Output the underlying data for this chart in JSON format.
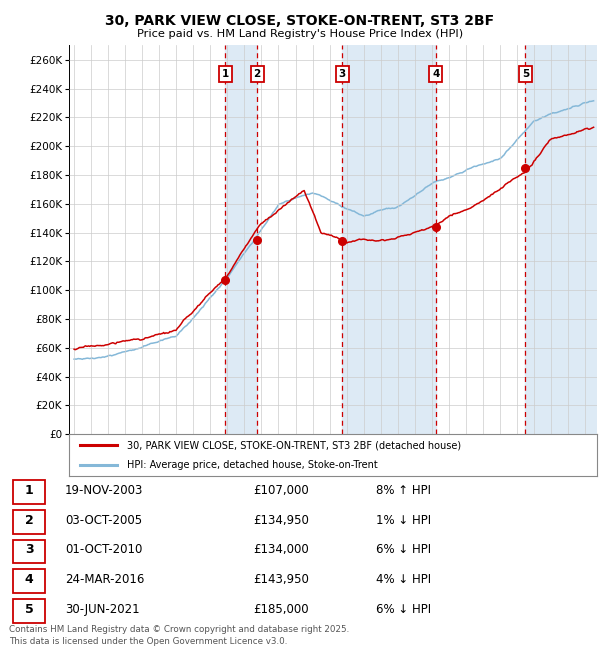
{
  "title": "30, PARK VIEW CLOSE, STOKE-ON-TRENT, ST3 2BF",
  "subtitle": "Price paid vs. HM Land Registry's House Price Index (HPI)",
  "ylim": [
    0,
    270000
  ],
  "yticks": [
    0,
    20000,
    40000,
    60000,
    80000,
    100000,
    120000,
    140000,
    160000,
    180000,
    200000,
    220000,
    240000,
    260000
  ],
  "sale_dates": [
    2003.88,
    2005.75,
    2010.75,
    2016.23,
    2021.5
  ],
  "sale_prices": [
    107000,
    134950,
    134000,
    143950,
    185000
  ],
  "sale_labels": [
    "1",
    "2",
    "3",
    "4",
    "5"
  ],
  "hpi_line_color": "#85b8d8",
  "price_line_color": "#cc0000",
  "sale_box_color": "#cc0000",
  "sale_vline_color": "#cc0000",
  "shade_color": "#ddeaf5",
  "legend_entries": [
    "30, PARK VIEW CLOSE, STOKE-ON-TRENT, ST3 2BF (detached house)",
    "HPI: Average price, detached house, Stoke-on-Trent"
  ],
  "table_rows": [
    [
      "1",
      "19-NOV-2003",
      "£107,000",
      "8% ↑ HPI"
    ],
    [
      "2",
      "03-OCT-2005",
      "£134,950",
      "1% ↓ HPI"
    ],
    [
      "3",
      "01-OCT-2010",
      "£134,000",
      "6% ↓ HPI"
    ],
    [
      "4",
      "24-MAR-2016",
      "£143,950",
      "4% ↓ HPI"
    ],
    [
      "5",
      "30-JUN-2021",
      "£185,000",
      "6% ↓ HPI"
    ]
  ],
  "footnote": "Contains HM Land Registry data © Crown copyright and database right 2025.\nThis data is licensed under the Open Government Licence v3.0.",
  "xmin": 1994.7,
  "xmax": 2025.7,
  "grid_color": "#cccccc"
}
